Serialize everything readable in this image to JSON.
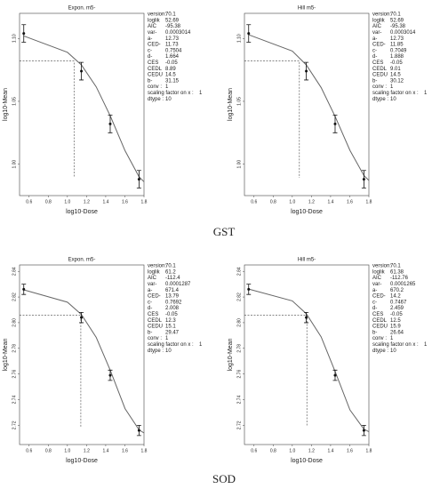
{
  "captions": [
    "GST",
    "SOD"
  ],
  "chart_data": [
    {
      "type": "line",
      "title": "Expon. m5-",
      "x_label": "log10-Dose",
      "y_label": "log10-Mean",
      "x": [
        0.544,
        1.146,
        1.447,
        1.748
      ],
      "values": [
        1.104,
        1.074,
        1.032,
        0.988
      ],
      "errors": [
        0.007,
        0.007,
        0.007,
        0.007
      ],
      "curve_x": [
        0.544,
        1.0,
        1.146,
        1.301,
        1.447,
        1.602,
        1.748,
        1.8
      ],
      "curve_y": [
        1.102,
        1.089,
        1.079,
        1.0615,
        1.0385,
        1.0107,
        0.99,
        0.986
      ],
      "ced_x": 1.069,
      "ced_y": 1.082,
      "xlim": [
        0.5,
        1.8
      ],
      "ylim": [
        0.975,
        1.12
      ],
      "xticks": [
        0.6,
        0.8,
        {
          "value": 1,
          "label": "1.0"
        },
        1.2,
        1.4,
        1.6,
        1.8
      ],
      "yticks": [
        {
          "value": 1,
          "label": "1.00"
        },
        1.05,
        {
          "value": 1.1,
          "label": "1.10"
        }
      ],
      "params": [
        [
          "version:",
          "70.1"
        ],
        [
          "loglik",
          "52.69"
        ],
        [
          "AIC",
          "-95.38"
        ],
        [
          "var-",
          "0.0003014"
        ],
        [
          "a-",
          "12.73"
        ],
        [
          "CED-",
          "11.73"
        ],
        [
          "c-",
          "0.7504"
        ],
        [
          "d-",
          "1.664"
        ],
        [
          "CES",
          "-0.05"
        ],
        [
          "CEDL",
          "8.89"
        ],
        [
          "CEDU",
          "14.5"
        ],
        [
          "b-",
          "31.15"
        ],
        [
          "conv :",
          "1"
        ],
        [
          "scaling factor on x :",
          "1"
        ],
        [
          "dtype :",
          "10"
        ]
      ]
    },
    {
      "type": "line",
      "title": "Hill m5-",
      "x_label": "log10-Dose",
      "y_label": "log10-Mean",
      "x": [
        0.544,
        1.146,
        1.447,
        1.748
      ],
      "values": [
        1.104,
        1.074,
        1.032,
        0.988
      ],
      "errors": [
        0.007,
        0.007,
        0.007,
        0.007
      ],
      "curve_x": [
        0.544,
        1.0,
        1.146,
        1.301,
        1.447,
        1.602,
        1.748,
        1.8
      ],
      "curve_y": [
        1.103,
        1.09,
        1.079,
        1.061,
        1.038,
        1.011,
        0.991,
        0.987
      ],
      "ced_x": 1.074,
      "ced_y": 1.082,
      "xlim": [
        0.5,
        1.8
      ],
      "ylim": [
        0.975,
        1.12
      ],
      "xticks": [
        0.6,
        0.8,
        {
          "value": 1,
          "label": "1.0"
        },
        1.2,
        1.4,
        1.6,
        1.8
      ],
      "yticks": [
        {
          "value": 1,
          "label": "1.00"
        },
        1.05,
        {
          "value": 1.1,
          "label": "1.10"
        }
      ],
      "params": [
        [
          "version:",
          "70.1"
        ],
        [
          "loglik",
          "52.69"
        ],
        [
          "AIC",
          "-95.38"
        ],
        [
          "var-",
          "0.0003014"
        ],
        [
          "a-",
          "12.73"
        ],
        [
          "CED-",
          "11.85"
        ],
        [
          "c-",
          "0.7049"
        ],
        [
          "d-",
          "1.888"
        ],
        [
          "CES",
          "-0.05"
        ],
        [
          "CEDL",
          "9.01"
        ],
        [
          "CEDU",
          "14.5"
        ],
        [
          "b-",
          "30.12"
        ],
        [
          "conv :",
          "1"
        ],
        [
          "scaling factor on x :",
          "1"
        ],
        [
          "dtype :",
          "10"
        ]
      ]
    },
    {
      "type": "line",
      "title": "Expon. m5-",
      "x_label": "log10-Dose",
      "y_label": "log10-Mean",
      "x": [
        0.544,
        1.146,
        1.447,
        1.748
      ],
      "values": [
        2.826,
        2.804,
        2.759,
        2.716
      ],
      "errors": [
        0.004,
        0.004,
        0.004,
        0.004
      ],
      "curve_x": [
        0.544,
        1.0,
        1.146,
        1.301,
        1.447,
        1.602,
        1.748,
        1.8
      ],
      "curve_y": [
        2.8256,
        2.816,
        2.8064,
        2.7885,
        2.763,
        2.733,
        2.7165,
        2.714
      ],
      "ced_x": 1.14,
      "ced_y": 2.806,
      "xlim": [
        0.5,
        1.8
      ],
      "ylim": [
        2.705,
        2.845
      ],
      "xticks": [
        0.6,
        0.8,
        {
          "value": 1,
          "label": "1.0"
        },
        1.2,
        1.4,
        1.6,
        1.8
      ],
      "yticks": [
        2.72,
        2.74,
        2.76,
        2.78,
        {
          "value": 2.8,
          "label": "2.80"
        },
        2.82,
        2.84
      ],
      "params": [
        [
          "version:",
          "70.1"
        ],
        [
          "loglik",
          "61.2"
        ],
        [
          "AIC",
          "-112.4"
        ],
        [
          "var-",
          "0.0001287"
        ],
        [
          "a-",
          "671.4"
        ],
        [
          "CED-",
          "13.79"
        ],
        [
          "c-",
          "0.7692"
        ],
        [
          "d-",
          "2.008"
        ],
        [
          "CES",
          "-0.05"
        ],
        [
          "CEDL",
          "12.3"
        ],
        [
          "CEDU",
          "15.1"
        ],
        [
          "b-",
          "29.47"
        ],
        [
          "conv :",
          "1"
        ],
        [
          "scaling factor on x :",
          "1"
        ],
        [
          "dtype :",
          "10"
        ]
      ]
    },
    {
      "type": "line",
      "title": "Hill m5-",
      "x_label": "log10-Dose",
      "y_label": "log10-Mean",
      "x": [
        0.544,
        1.146,
        1.447,
        1.748
      ],
      "values": [
        2.826,
        2.804,
        2.759,
        2.716
      ],
      "errors": [
        0.004,
        0.004,
        0.004,
        0.004
      ],
      "curve_x": [
        0.544,
        1.0,
        1.146,
        1.301,
        1.447,
        1.602,
        1.748,
        1.8
      ],
      "curve_y": [
        2.8262,
        2.817,
        2.807,
        2.789,
        2.762,
        2.732,
        2.717,
        2.715
      ],
      "ced_x": 1.152,
      "ced_y": 2.806,
      "xlim": [
        0.5,
        1.8
      ],
      "ylim": [
        2.705,
        2.845
      ],
      "xticks": [
        0.6,
        0.8,
        {
          "value": 1,
          "label": "1.0"
        },
        1.2,
        1.4,
        1.6,
        1.8
      ],
      "yticks": [
        2.72,
        2.74,
        2.76,
        2.78,
        {
          "value": 2.8,
          "label": "2.80"
        },
        2.82,
        2.84
      ],
      "params": [
        [
          "version:",
          "70.1"
        ],
        [
          "loglik",
          "61.38"
        ],
        [
          "AIC",
          "-112.76"
        ],
        [
          "var-",
          "0.0001265"
        ],
        [
          "a-",
          "670.2"
        ],
        [
          "CED-",
          "14.2"
        ],
        [
          "c-",
          "0.7467"
        ],
        [
          "d-",
          "2.459"
        ],
        [
          "CES",
          "-0.05"
        ],
        [
          "CEDL",
          "12.5"
        ],
        [
          "CEDU",
          "15.9"
        ],
        [
          "b-",
          "26.64"
        ],
        [
          "conv :",
          "1"
        ],
        [
          "scaling factor on x :",
          "1"
        ],
        [
          "dtype :",
          "10"
        ]
      ]
    }
  ]
}
